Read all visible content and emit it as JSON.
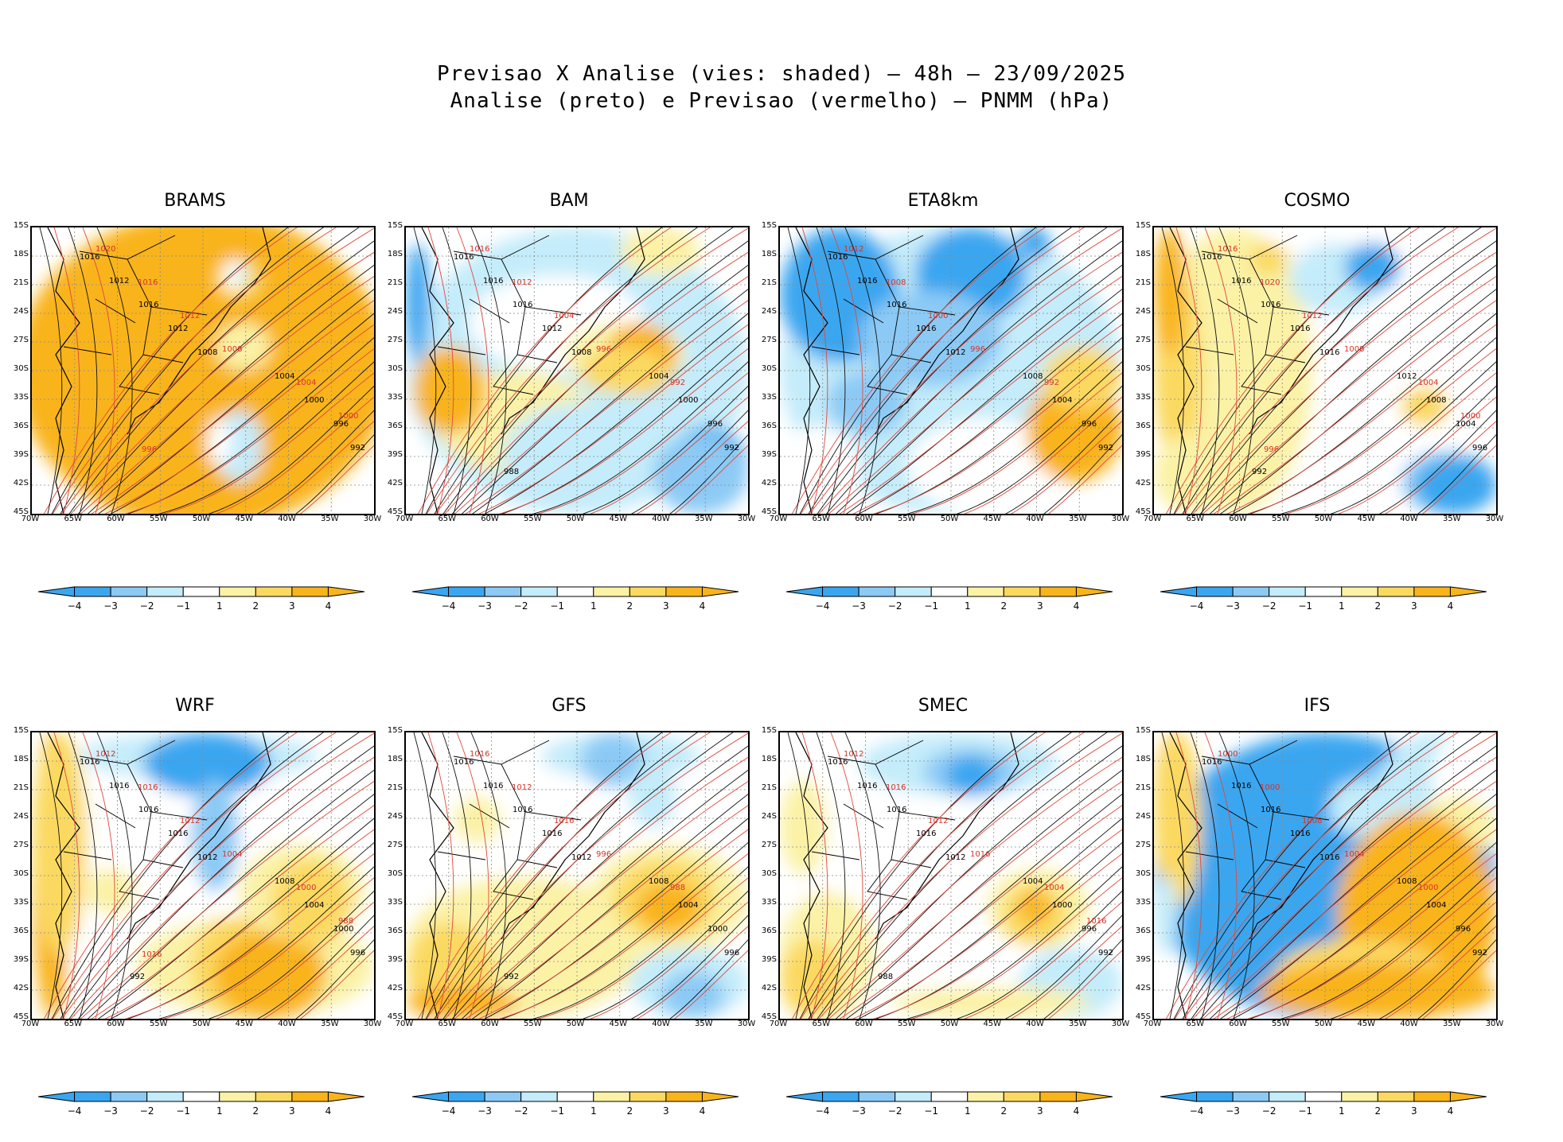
{
  "title_line1": "Previsao X Analise (vies: shaded) — 48h — 23/09/2025",
  "title_line2": "Analise (preto) e Previsao (vermelho) — PNMM (hPa)",
  "lat_labels": [
    "15S",
    "18S",
    "21S",
    "24S",
    "27S",
    "30S",
    "33S",
    "36S",
    "39S",
    "42S",
    "45S"
  ],
  "lon_labels": [
    "70W",
    "65W",
    "60W",
    "55W",
    "50W",
    "45W",
    "40W",
    "35W",
    "30W"
  ],
  "colorbar": {
    "labels": [
      "-4",
      "-3",
      "-2",
      "-1",
      "1",
      "2",
      "3",
      "4"
    ],
    "colors": [
      "#3ba6f0",
      "#8ccaf5",
      "#c4ecfa",
      "#ffffff",
      "#fbf2a6",
      "#fbd960",
      "#f9b41a"
    ]
  },
  "chart_data": [
    {
      "type": "map",
      "name": "BRAMS",
      "variable": "PNMM (hPa)",
      "bias_range": [
        -4,
        4
      ],
      "dominant_bias": "positive",
      "analysis_contours": [
        "1016",
        "1012",
        "1016",
        "1012",
        "1008",
        "1004",
        "1000",
        "996",
        "992"
      ],
      "forecast_contours": [
        "1020",
        "1016",
        "1012",
        "1008",
        "1004",
        "1000",
        "996"
      ]
    },
    {
      "type": "map",
      "name": "BAM",
      "variable": "PNMM (hPa)",
      "bias_range": [
        -4,
        4
      ],
      "dominant_bias": "mixed",
      "analysis_contours": [
        "1016",
        "1016",
        "1016",
        "1012",
        "1008",
        "1004",
        "1000",
        "996",
        "992",
        "988"
      ],
      "forecast_contours": [
        "1016",
        "1012",
        "1004",
        "996",
        "992"
      ]
    },
    {
      "type": "map",
      "name": "ETA8km",
      "variable": "PNMM (hPa)",
      "bias_range": [
        -4,
        4
      ],
      "dominant_bias": "negative",
      "analysis_contours": [
        "1016",
        "1016",
        "1016",
        "1016",
        "1012",
        "1008",
        "1004",
        "996",
        "992"
      ],
      "forecast_contours": [
        "1012",
        "1008",
        "1000",
        "996",
        "992"
      ]
    },
    {
      "type": "map",
      "name": "COSMO",
      "variable": "PNMM (hPa)",
      "bias_range": [
        -4,
        4
      ],
      "dominant_bias": "mixed",
      "analysis_contours": [
        "1016",
        "1016",
        "1016",
        "1016",
        "1016",
        "1012",
        "1008",
        "1004",
        "996",
        "992"
      ],
      "forecast_contours": [
        "1016",
        "1020",
        "1012",
        "1008",
        "1004",
        "1000",
        "996"
      ]
    },
    {
      "type": "map",
      "name": "WRF",
      "variable": "PNMM (hPa)",
      "bias_range": [
        -4,
        4
      ],
      "dominant_bias": "mixed",
      "analysis_contours": [
        "1016",
        "1016",
        "1016",
        "1016",
        "1012",
        "1008",
        "1004",
        "1000",
        "996",
        "992"
      ],
      "forecast_contours": [
        "1012",
        "1016",
        "1012",
        "1004",
        "1000",
        "988",
        "1016"
      ]
    },
    {
      "type": "map",
      "name": "GFS",
      "variable": "PNMM (hPa)",
      "bias_range": [
        -4,
        4
      ],
      "dominant_bias": "mixed",
      "analysis_contours": [
        "1016",
        "1016",
        "1016",
        "1016",
        "1012",
        "1008",
        "1004",
        "1000",
        "996",
        "992"
      ],
      "forecast_contours": [
        "1016",
        "1012",
        "1016",
        "996",
        "988"
      ]
    },
    {
      "type": "map",
      "name": "SMEC",
      "variable": "PNMM (hPa)",
      "bias_range": [
        -4,
        4
      ],
      "dominant_bias": "mixed",
      "analysis_contours": [
        "1016",
        "1016",
        "1016",
        "1016",
        "1012",
        "1004",
        "1000",
        "996",
        "992",
        "988"
      ],
      "forecast_contours": [
        "1012",
        "1016",
        "1012",
        "1016",
        "1004",
        "1016"
      ]
    },
    {
      "type": "map",
      "name": "IFS",
      "variable": "PNMM (hPa)",
      "bias_range": [
        -4,
        4
      ],
      "dominant_bias": "mixed",
      "analysis_contours": [
        "1016",
        "1016",
        "1016",
        "1016",
        "1016",
        "1008",
        "1004",
        "996",
        "992"
      ],
      "forecast_contours": [
        "1000",
        "1000",
        "1008",
        "1004",
        "1000"
      ]
    }
  ]
}
